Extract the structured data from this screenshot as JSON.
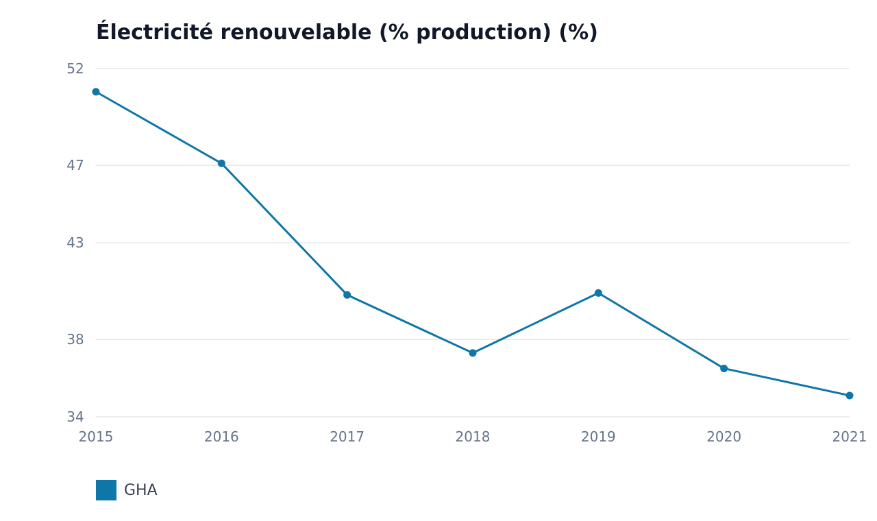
{
  "chart_data": {
    "type": "line",
    "title": "Électricité renouvelable (% production) (%)",
    "xlabel": "",
    "ylabel": "",
    "x": [
      "2015",
      "2016",
      "2017",
      "2018",
      "2019",
      "2020",
      "2021"
    ],
    "y_ticks": [
      "34",
      "38",
      "43",
      "47",
      "52"
    ],
    "ylim": [
      34,
      52
    ],
    "grid": true,
    "legend_position": "bottom-left",
    "series": [
      {
        "name": "GHA",
        "color": "#0f76a8",
        "values": [
          50.8,
          47.1,
          40.3,
          37.3,
          40.4,
          36.5,
          35.1
        ]
      }
    ]
  }
}
